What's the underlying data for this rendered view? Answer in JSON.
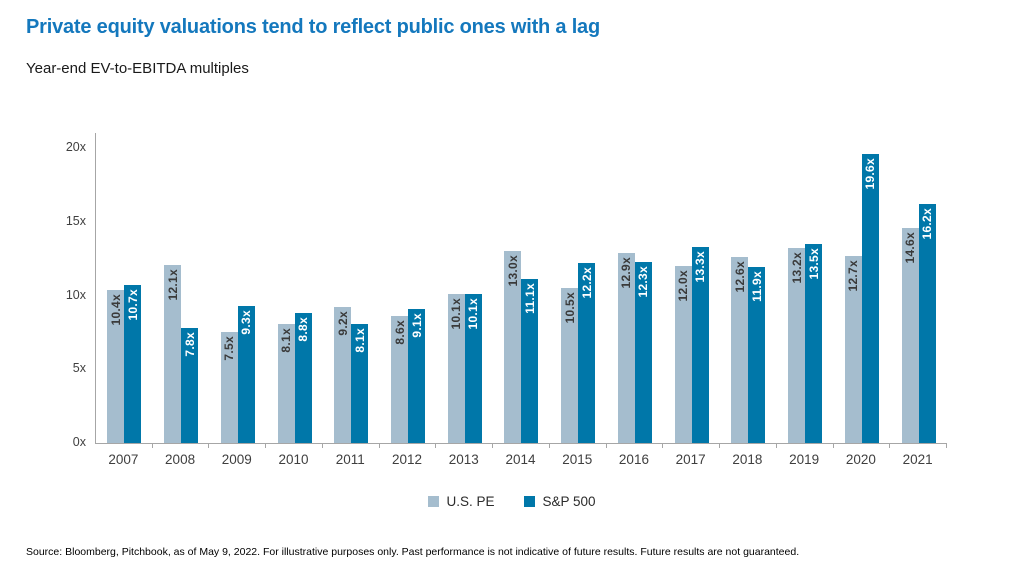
{
  "header": {
    "title": "Private equity valuations tend to reflect public ones with a lag",
    "title_color": "#1478bd",
    "subtitle": "Year-end EV-to-EBITDA multiples"
  },
  "chart_data": {
    "type": "bar",
    "title": "Year-end EV-to-EBITDA multiples",
    "categories": [
      "2007",
      "2008",
      "2009",
      "2010",
      "2011",
      "2012",
      "2013",
      "2014",
      "2015",
      "2016",
      "2017",
      "2018",
      "2019",
      "2020",
      "2021"
    ],
    "series": [
      {
        "name": "U.S. PE",
        "color": "#a5bdce",
        "label_color": "#3a3a3a",
        "values": [
          10.4,
          12.1,
          7.5,
          8.1,
          9.2,
          8.6,
          10.1,
          13.0,
          10.5,
          12.9,
          12.0,
          12.6,
          13.2,
          12.7,
          14.6
        ]
      },
      {
        "name": "S&P 500",
        "color": "#0077a9",
        "label_color": "#ffffff",
        "values": [
          10.7,
          7.8,
          9.3,
          8.8,
          8.1,
          9.1,
          10.1,
          11.1,
          12.2,
          12.3,
          13.3,
          11.9,
          13.5,
          19.6,
          16.2
        ]
      }
    ],
    "value_suffix": "x",
    "xlabel": "",
    "ylabel": "",
    "ylim": [
      0,
      20
    ],
    "y_ticks": [
      "0x",
      "5x",
      "10x",
      "15x",
      "20x"
    ],
    "grid": false,
    "legend_position": "bottom",
    "bar_labels": "rotated-vertical-inside-top"
  },
  "footer": {
    "source": "Source: Bloomberg, Pitchbook, as of May 9, 2022. For illustrative purposes only. Past performance is not indicative of future results. Future results are not guaranteed."
  }
}
